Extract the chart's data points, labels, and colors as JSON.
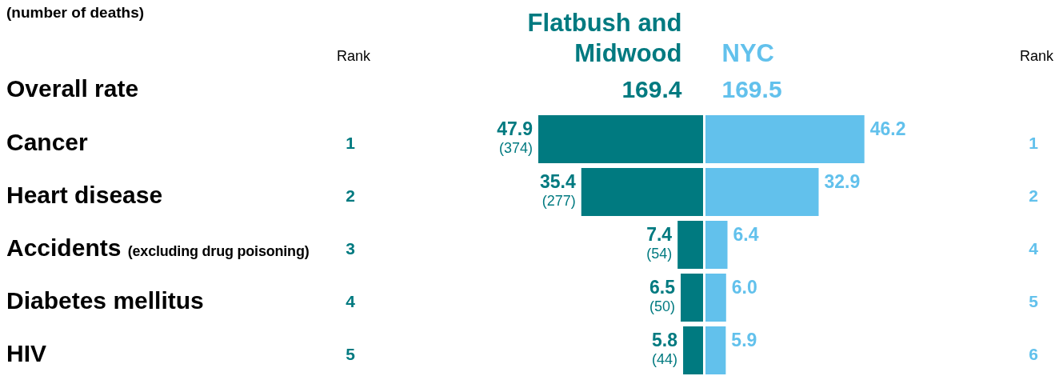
{
  "chart_data": [
    {
      "type": "bar",
      "orientation": "horizontal",
      "title": "(number of deaths)",
      "categories": [
        "Cancer",
        "Heart disease",
        "Accidents (excluding drug poisoning)",
        "Diabetes mellitus",
        "HIV"
      ],
      "series": [
        {
          "name": "Flatbush and Midwood",
          "color": "#007a80",
          "values": [
            47.9,
            35.4,
            7.4,
            6.5,
            5.8
          ],
          "value_labels": [
            "47.9 (374)",
            "35.4 (277)",
            "7.4 (54)",
            "6.5 (50)",
            "5.8 (44)"
          ]
        }
      ],
      "annotations": [
        "Overall rate",
        "169.4",
        "Rank",
        "1",
        "2",
        "3",
        "4",
        "5"
      ],
      "legend": "top"
    },
    {
      "type": "bar",
      "orientation": "horizontal",
      "categories": [
        null,
        null,
        null,
        null,
        null
      ],
      "series": [
        {
          "name": "NYC",
          "color": "#62c1ec",
          "values": [
            46.2,
            32.9,
            6.4,
            6.0,
            5.9
          ],
          "value_labels": [
            "46.2",
            "32.9",
            "6.4",
            "6.0",
            "5.9"
          ]
        }
      ],
      "annotations": [
        "169.5",
        "Rank",
        "1",
        "2",
        "4",
        "5",
        "6"
      ],
      "legend": "top"
    }
  ]
}
